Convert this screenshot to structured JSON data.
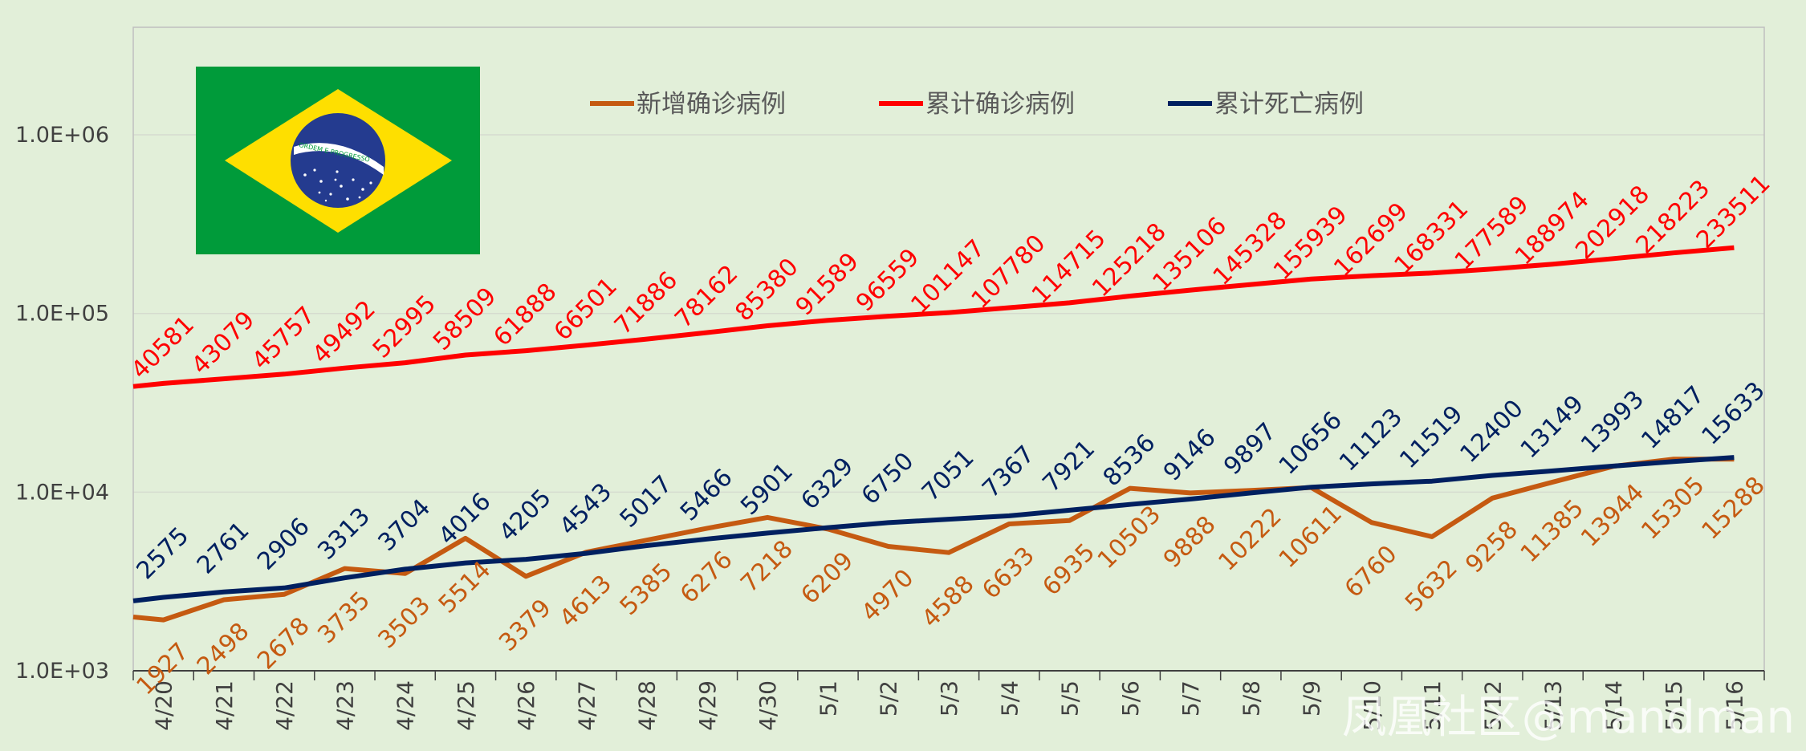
{
  "watermark": "凤凰社区@mandman",
  "colors": {
    "background": "#e2efd9",
    "new_cases": "#c55a11",
    "total_cases": "#ff0000",
    "total_deaths": "#002060",
    "flag_green": "#009b3a",
    "flag_yellow": "#fedf00",
    "flag_blue": "#243b8f"
  },
  "flag": {
    "motto": "ORDEM E PROGRESSO"
  },
  "chart_data": {
    "type": "line",
    "title": "",
    "xlabel": "",
    "ylabel": "",
    "y_scale": "log",
    "ylim": [
      1000,
      4000000
    ],
    "y_ticks": [
      1000,
      10000,
      100000,
      1000000
    ],
    "y_tick_labels": [
      "1.0E+03",
      "1.0E+04",
      "1.0E+05",
      "1.0E+06"
    ],
    "grid": "horizontal",
    "legend_position": "top-center",
    "categories": [
      "4/20",
      "4/21",
      "4/22",
      "4/23",
      "4/24",
      "4/25",
      "4/26",
      "4/27",
      "4/28",
      "4/29",
      "4/30",
      "5/1",
      "5/2",
      "5/3",
      "5/4",
      "5/5",
      "5/6",
      "5/7",
      "5/8",
      "5/9",
      "5/10",
      "5/11",
      "5/12",
      "5/13",
      "5/14",
      "5/15",
      "5/16"
    ],
    "series": [
      {
        "name": "新增确诊病例",
        "color": "#c55a11",
        "start_value": 2000,
        "values": [
          1927,
          2498,
          2678,
          3735,
          3503,
          5514,
          3379,
          4613,
          5385,
          6276,
          7218,
          6209,
          4970,
          4588,
          6633,
          6935,
          10503,
          9888,
          10222,
          10611,
          6760,
          5632,
          9258,
          11385,
          13944,
          15305,
          15288
        ]
      },
      {
        "name": "累计确诊病例",
        "color": "#ff0000",
        "start_value": 39000,
        "values": [
          40581,
          43079,
          45757,
          49492,
          52995,
          58509,
          61888,
          66501,
          71886,
          78162,
          85380,
          91589,
          96559,
          101147,
          107780,
          114715,
          125218,
          135106,
          145328,
          155939,
          162699,
          168331,
          177589,
          188974,
          202918,
          218223,
          233511
        ]
      },
      {
        "name": "累计死亡病例",
        "color": "#002060",
        "start_value": 2462,
        "values": [
          2575,
          2761,
          2906,
          3313,
          3704,
          4016,
          4205,
          4543,
          5017,
          5466,
          5901,
          6329,
          6750,
          7051,
          7367,
          7921,
          8536,
          9146,
          9897,
          10656,
          11123,
          11519,
          12400,
          13149,
          13993,
          14817,
          15633
        ]
      }
    ]
  }
}
